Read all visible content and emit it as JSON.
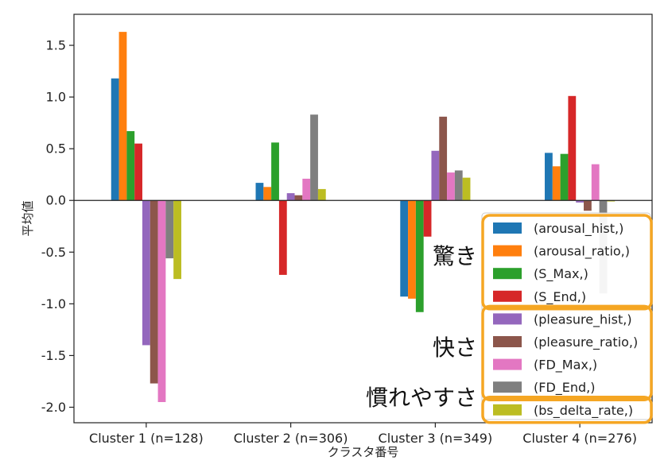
{
  "chart_data": {
    "type": "bar",
    "xlabel": "クラスタ番号",
    "ylabel": "平均値",
    "ylim": [
      -2.15,
      1.8
    ],
    "yticks": [
      1.5,
      1.0,
      0.5,
      0.0,
      -0.5,
      -1.0,
      -1.5,
      -2.0
    ],
    "ytick_labels": [
      "1.5",
      "1.0",
      "0.5",
      "0.0",
      "-0.5",
      "-1.0",
      "-1.5",
      "-2.0"
    ],
    "grid": false,
    "legend_position": "right",
    "categories": [
      "Cluster 1 (n=128)",
      "Cluster 2 (n=306)",
      "Cluster 3 (n=349)",
      "Cluster 4 (n=276)"
    ],
    "series": [
      {
        "name": "(arousal_hist,)",
        "color": "#1f77b4",
        "values": [
          1.18,
          0.17,
          -0.93,
          0.46
        ]
      },
      {
        "name": "(arousal_ratio,)",
        "color": "#ff7f0e",
        "values": [
          1.63,
          0.13,
          -0.95,
          0.33
        ]
      },
      {
        "name": "(S_Max,)",
        "color": "#2ca02c",
        "values": [
          0.67,
          0.56,
          -1.08,
          0.45
        ]
      },
      {
        "name": "(S_End,)",
        "color": "#d62728",
        "values": [
          0.55,
          -0.72,
          -0.35,
          1.01
        ]
      },
      {
        "name": "(pleasure_hist,)",
        "color": "#9467bd",
        "values": [
          -1.4,
          0.07,
          0.48,
          -0.02
        ]
      },
      {
        "name": "(pleasure_ratio,)",
        "color": "#8c564b",
        "values": [
          -1.77,
          0.05,
          0.81,
          -0.1
        ]
      },
      {
        "name": "(FD_Max,)",
        "color": "#e377c2",
        "values": [
          -1.95,
          0.21,
          0.27,
          0.35
        ]
      },
      {
        "name": "(FD_End,)",
        "color": "#7f7f7f",
        "values": [
          -0.56,
          0.83,
          0.29,
          -0.9
        ]
      },
      {
        "name": "(bs_delta_rate,)",
        "color": "#bcbd22",
        "values": [
          -0.76,
          0.11,
          0.22,
          -0.01
        ]
      }
    ]
  },
  "annotations": {
    "groups": [
      {
        "label": "驚き",
        "members": [
          0,
          1,
          2,
          3
        ]
      },
      {
        "label": "快さ",
        "members": [
          4,
          5,
          6,
          7
        ]
      },
      {
        "label": "慣れやすさ",
        "members": [
          8
        ]
      }
    ],
    "box_color": "#f5a623"
  }
}
